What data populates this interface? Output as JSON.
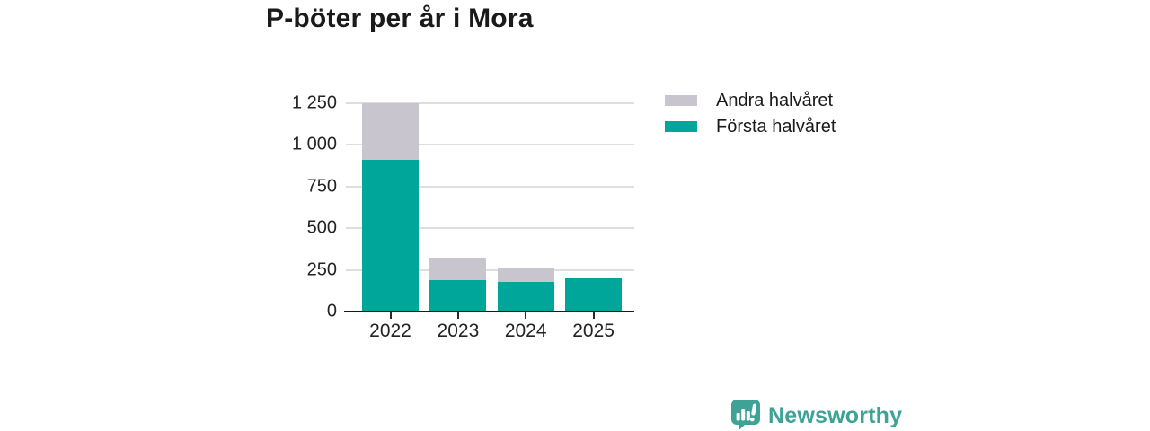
{
  "header": {
    "title": "P-böter per år i Mora"
  },
  "chart_data": {
    "type": "bar",
    "stacked": true,
    "title": "P-böter per år i Mora",
    "categories": [
      "2022",
      "2023",
      "2024",
      "2025"
    ],
    "series": [
      {
        "name": "Första halvåret",
        "color": "#00a699",
        "values": [
          910,
          190,
          180,
          200
        ]
      },
      {
        "name": "Andra halvåret",
        "color": "#c8c5ce",
        "values": [
          340,
          135,
          85,
          0
        ]
      }
    ],
    "xlabel": "",
    "ylabel": "",
    "ylim": [
      0,
      1250
    ],
    "yticks": [
      0,
      250,
      500,
      750,
      1000,
      1250
    ],
    "ytick_labels": [
      "0",
      "250",
      "500",
      "750",
      "1 000",
      "1 250"
    ],
    "grid": true,
    "legend_position": "right"
  },
  "legend": {
    "items": [
      {
        "label": "Andra halvåret",
        "color": "#c8c5ce"
      },
      {
        "label": "Första halvåret",
        "color": "#00a699"
      }
    ]
  },
  "branding": {
    "name": "Newsworthy",
    "color": "#3ea296"
  },
  "colors": {
    "first_half": "#00a699",
    "second_half": "#c8c5ce",
    "grid": "#dededf",
    "axis": "#1a1a1a",
    "text": "#232323"
  }
}
